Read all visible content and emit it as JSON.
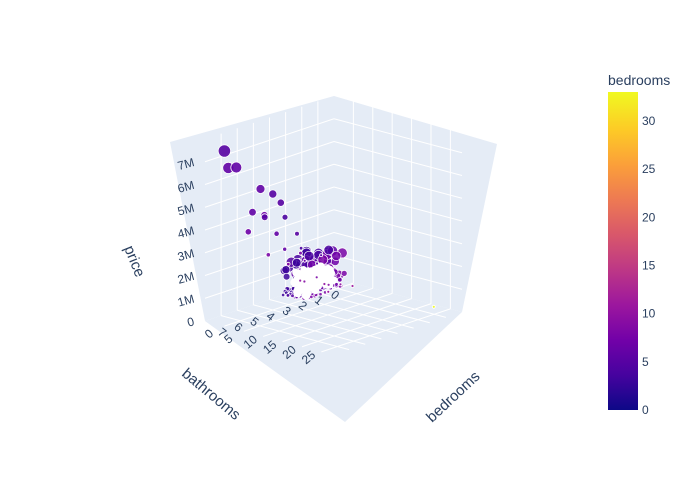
{
  "chart_data": {
    "type": "scatter3d",
    "axes": {
      "x": {
        "title": "bathrooms",
        "ticks": [
          "0",
          "1",
          "2",
          "3",
          "4",
          "5",
          "6",
          "7"
        ]
      },
      "y": {
        "title": "bedrooms",
        "ticks": [
          "0",
          "5",
          "10",
          "15",
          "20",
          "25"
        ]
      },
      "z": {
        "title": "price",
        "ticks": [
          "0",
          "1M",
          "2M",
          "3M",
          "4M",
          "5M",
          "6M",
          "7M"
        ]
      }
    },
    "color_axis": {
      "title": "bedrooms",
      "range": [
        0,
        33
      ],
      "ticks": [
        "0",
        "5",
        "10",
        "15",
        "20",
        "25",
        "30"
      ],
      "colorscale": [
        "#0d0887",
        "#46039f",
        "#7201a8",
        "#9c179e",
        "#bd3786",
        "#d8576b",
        "#ed7953",
        "#fb9f3a",
        "#fdca26",
        "#f0f921"
      ]
    },
    "marker_size_by": "price",
    "points": [
      {
        "bathrooms": 8.0,
        "bedrooms": 5,
        "price": 7.7
      },
      {
        "bathrooms": 8.0,
        "bedrooms": 6,
        "price": 7.0
      },
      {
        "bathrooms": 7.5,
        "bedrooms": 6,
        "price": 6.9
      },
      {
        "bathrooms": 6.0,
        "bedrooms": 6,
        "price": 5.6
      },
      {
        "bathrooms": 5.0,
        "bedrooms": 5,
        "price": 5.1
      },
      {
        "bathrooms": 6.5,
        "bedrooms": 6,
        "price": 4.7
      },
      {
        "bathrooms": 4.5,
        "bedrooms": 5,
        "price": 4.6
      },
      {
        "bathrooms": 6.0,
        "bedrooms": 7,
        "price": 4.5
      },
      {
        "bathrooms": 5.5,
        "bedrooms": 5,
        "price": 4.2
      },
      {
        "bathrooms": 7.0,
        "bedrooms": 7,
        "price": 4.0
      },
      {
        "bathrooms": 4.0,
        "bedrooms": 4,
        "price": 3.8
      },
      {
        "bathrooms": 5.0,
        "bedrooms": 6,
        "price": 3.4
      },
      {
        "bathrooms": 6.0,
        "bedrooms": 8,
        "price": 2.8
      },
      {
        "bathrooms": 4.5,
        "bedrooms": 6,
        "price": 2.6
      },
      {
        "bathrooms": 5.0,
        "bedrooms": 9,
        "price": 2.2
      },
      {
        "bathrooms": 4.0,
        "bedrooms": 8,
        "price": 2.4
      },
      {
        "bathrooms": 3.5,
        "bedrooms": 5,
        "price": 3.0
      },
      {
        "bathrooms": 3.0,
        "bedrooms": 4,
        "price": 2.2
      },
      {
        "bathrooms": 3.5,
        "bedrooms": 7,
        "price": 1.9
      },
      {
        "bathrooms": 4.5,
        "bedrooms": 10,
        "price": 1.4
      },
      {
        "bathrooms": 3.0,
        "bedrooms": 8,
        "price": 1.1
      },
      {
        "bathrooms": 2.5,
        "bedrooms": 6,
        "price": 1.5
      },
      {
        "bathrooms": 2.0,
        "bedrooms": 5,
        "price": 1.7
      },
      {
        "bathrooms": 3.0,
        "bedrooms": 10,
        "price": 0.9
      },
      {
        "bathrooms": 2.5,
        "bedrooms": 9,
        "price": 0.7
      },
      {
        "bathrooms": 1.5,
        "bedrooms": 11,
        "price": 0.5
      },
      {
        "bathrooms": 1.75,
        "bedrooms": 33,
        "price": 0.64
      },
      {
        "bathrooms": 3.0,
        "bedrooms": 11,
        "price": 0.6
      },
      {
        "bathrooms": 2.0,
        "bedrooms": 10,
        "price": 0.65
      },
      {
        "bathrooms": 4.0,
        "bedrooms": 9,
        "price": 1.2
      }
    ]
  }
}
